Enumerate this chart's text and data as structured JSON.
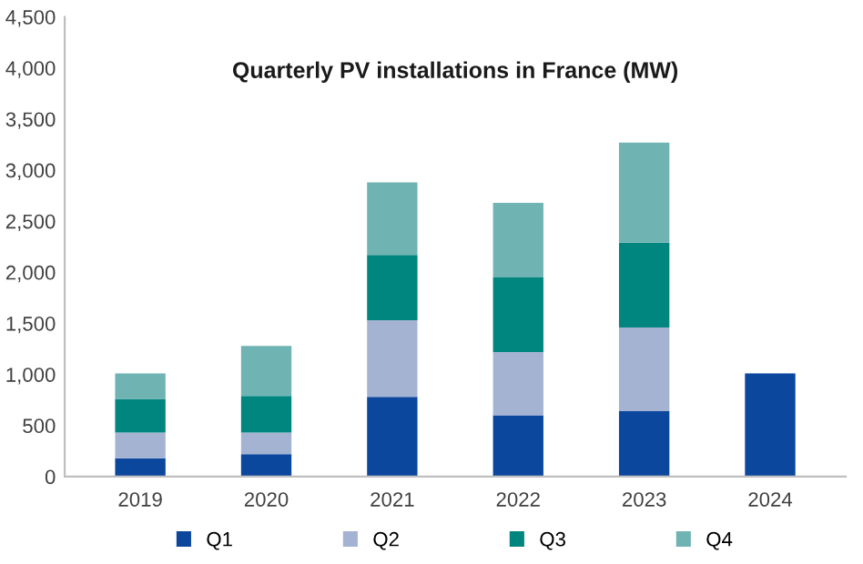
{
  "chart_data": {
    "type": "bar",
    "title": "Quarterly PV installations in France (MW)",
    "categories": [
      "2019",
      "2020",
      "2021",
      "2022",
      "2023",
      "2024"
    ],
    "stacked": true,
    "series": [
      {
        "name": "Q1",
        "color": "#0b479c",
        "values": [
          180,
          220,
          780,
          600,
          640,
          1010
        ]
      },
      {
        "name": "Q2",
        "color": "#a5b3d3",
        "values": [
          250,
          210,
          750,
          620,
          820,
          null
        ]
      },
      {
        "name": "Q3",
        "color": "#00857f",
        "values": [
          330,
          360,
          640,
          730,
          830,
          null
        ]
      },
      {
        "name": "Q4",
        "color": "#70b3b3",
        "values": [
          250,
          490,
          710,
          730,
          980,
          null
        ]
      }
    ],
    "ylim": [
      0,
      4500
    ],
    "yticks": [
      {
        "value": 0,
        "label": "0"
      },
      {
        "value": 500,
        "label": "500"
      },
      {
        "value": 1000,
        "label": "1,000"
      },
      {
        "value": 1500,
        "label": "1,500"
      },
      {
        "value": 2000,
        "label": "2,000"
      },
      {
        "value": 2500,
        "label": "2,500"
      },
      {
        "value": 3000,
        "label": "3,000"
      },
      {
        "value": 3500,
        "label": "3,500"
      },
      {
        "value": 4000,
        "label": "4,000"
      },
      {
        "value": 4500,
        "label": "4,500"
      }
    ],
    "grid": false,
    "legend": "bottom"
  }
}
